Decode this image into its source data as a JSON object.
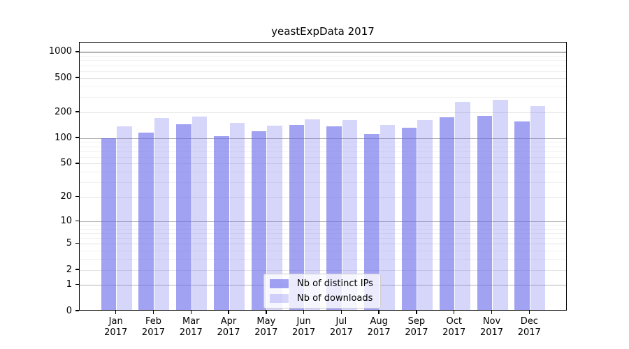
{
  "chart_data": {
    "type": "bar",
    "title": "yeastExpData 2017",
    "categories": [
      "Jan 2017",
      "Feb 2017",
      "Mar 2017",
      "Apr 2017",
      "May 2017",
      "Jun 2017",
      "Jul 2017",
      "Aug 2017",
      "Sep 2017",
      "Oct 2017",
      "Nov 2017",
      "Dec 2017"
    ],
    "series": [
      {
        "name": "Nb of distinct IPs",
        "color": "rgba(105,105,235,0.62)",
        "values": [
          96,
          113,
          140,
          102,
          117,
          139,
          134,
          109,
          127,
          170,
          175,
          151
        ]
      },
      {
        "name": "Nb of downloads",
        "color": "rgba(105,105,235,0.27)",
        "values": [
          132,
          166,
          173,
          145,
          136,
          161,
          158,
          137,
          158,
          258,
          270,
          230
        ]
      }
    ],
    "y_axis": {
      "scale": "log10(v+1)",
      "ticks": [
        0,
        1,
        2,
        5,
        10,
        20,
        50,
        100,
        200,
        500,
        1000
      ],
      "range": [
        0,
        1300
      ]
    },
    "x_axis": {
      "label": ""
    },
    "legend": {
      "position": "lower center"
    },
    "grid": "on"
  },
  "colors": {
    "bar_distinct_ips_rendered": "#a3a3f4",
    "bar_downloads_rendered": "#d9d9f8",
    "grid_major": "#b3b3b3",
    "grid_minor": "#f1f1f1"
  }
}
